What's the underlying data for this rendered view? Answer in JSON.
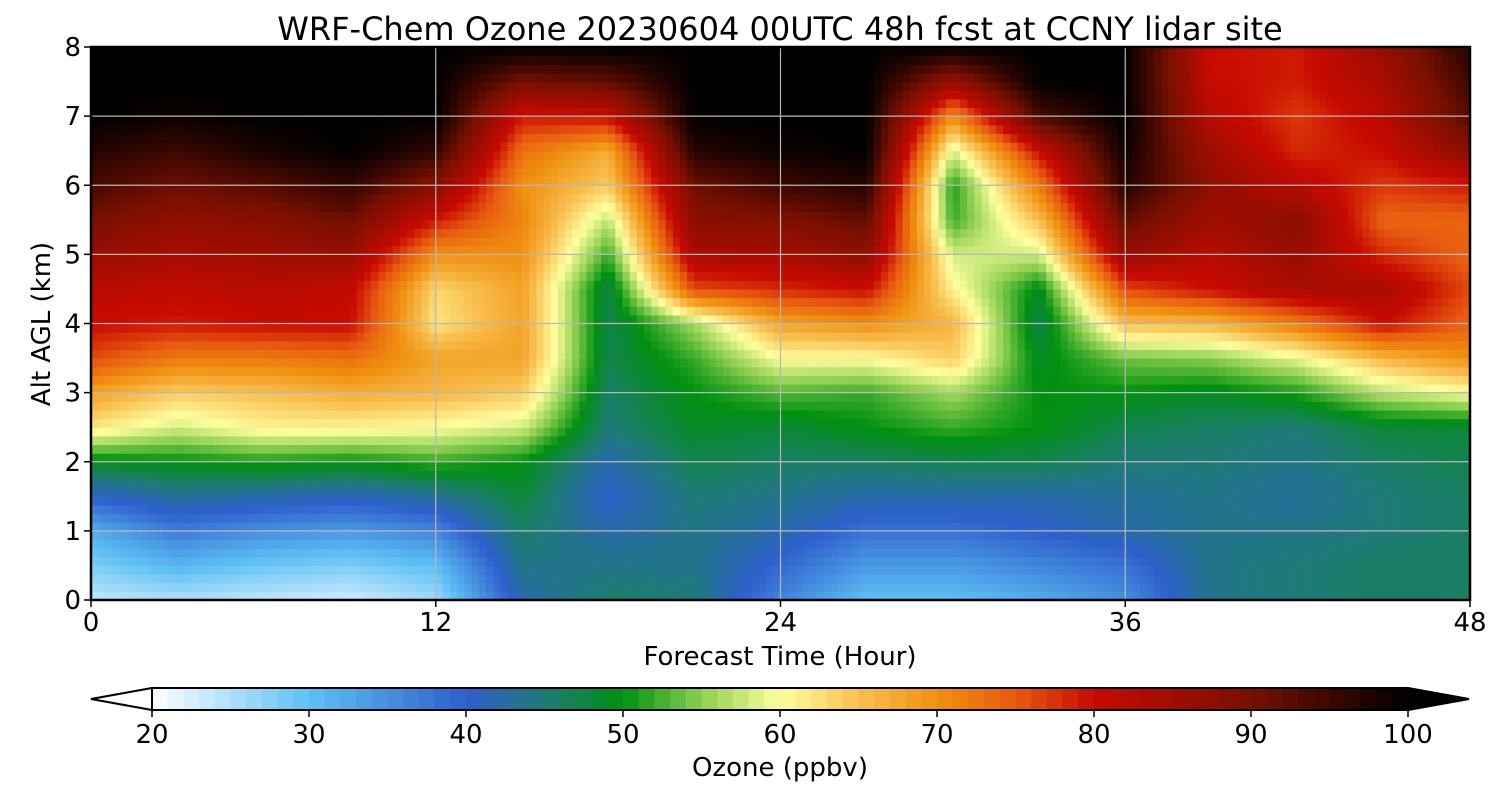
{
  "chart_data": {
    "type": "heatmap",
    "title": "WRF-Chem Ozone  20230604 00UTC 48h fcst at CCNY lidar site",
    "xlabel": "Forecast Time (Hour)",
    "ylabel": "Alt AGL (km)",
    "xlim": [
      0,
      48
    ],
    "ylim": [
      0,
      8
    ],
    "xticks": [
      "0",
      "12",
      "24",
      "36",
      "48"
    ],
    "yticks": [
      "0",
      "1",
      "2",
      "3",
      "4",
      "5",
      "6",
      "7",
      "8"
    ],
    "grid": true,
    "colorbar": {
      "label": "Ozone  (ppbv)",
      "range": [
        20,
        100
      ],
      "ticks": [
        "20",
        "30",
        "40",
        "50",
        "60",
        "70",
        "80",
        "90",
        "100"
      ],
      "extend": "both",
      "stops": [
        {
          "v": 20,
          "c": "#ffffff"
        },
        {
          "v": 30,
          "c": "#5ec0f5"
        },
        {
          "v": 40,
          "c": "#2e5fcc"
        },
        {
          "v": 45,
          "c": "#1f7a78"
        },
        {
          "v": 50,
          "c": "#009010"
        },
        {
          "v": 55,
          "c": "#8ccf50"
        },
        {
          "v": 60,
          "c": "#ffffa0"
        },
        {
          "v": 65,
          "c": "#f8c050"
        },
        {
          "v": 70,
          "c": "#f09010"
        },
        {
          "v": 75,
          "c": "#e85a10"
        },
        {
          "v": 80,
          "c": "#c80a00"
        },
        {
          "v": 90,
          "c": "#781000"
        },
        {
          "v": 100,
          "c": "#000000"
        }
      ]
    },
    "hours": [
      0,
      3,
      6,
      9,
      12,
      15,
      18,
      21,
      24,
      27,
      30,
      33,
      36,
      39,
      42,
      45,
      48
    ],
    "altitudes_km": [
      0,
      0.5,
      1,
      1.5,
      2,
      2.5,
      3,
      3.5,
      4,
      4.5,
      5,
      5.5,
      6,
      6.5,
      7,
      7.5,
      8
    ],
    "ozone_ppbv": [
      [
        24,
        25,
        24,
        23,
        26,
        42,
        46,
        45,
        36,
        30,
        30,
        32,
        35,
        44,
        45,
        46,
        46
      ],
      [
        28,
        31,
        29,
        28,
        30,
        44,
        44,
        44,
        39,
        34,
        34,
        36,
        38,
        44,
        45,
        46,
        46
      ],
      [
        32,
        37,
        35,
        34,
        36,
        46,
        42,
        44,
        42,
        38,
        38,
        40,
        42,
        44,
        44,
        45,
        46
      ],
      [
        40,
        43,
        42,
        41,
        43,
        48,
        40,
        45,
        44,
        42,
        42,
        42,
        43,
        44,
        43,
        45,
        46
      ],
      [
        49,
        50,
        51,
        50,
        52,
        50,
        42,
        47,
        46,
        46,
        47,
        47,
        45,
        45,
        44,
        46,
        47
      ],
      [
        62,
        58,
        61,
        61,
        60,
        58,
        45,
        49,
        48,
        50,
        52,
        50,
        47,
        46,
        45,
        48,
        48
      ],
      [
        68,
        64,
        65,
        67,
        66,
        64,
        46,
        50,
        53,
        52,
        56,
        50,
        50,
        49,
        51,
        57,
        60
      ],
      [
        76,
        72,
        72,
        73,
        68,
        68,
        47,
        52,
        60,
        60,
        64,
        49,
        54,
        55,
        59,
        66,
        70
      ],
      [
        80,
        79,
        80,
        80,
        62,
        68,
        47,
        56,
        68,
        70,
        66,
        47,
        65,
        66,
        72,
        80,
        74
      ],
      [
        82,
        81,
        82,
        81,
        63,
        68,
        47,
        76,
        78,
        80,
        61,
        49,
        76,
        80,
        84,
        84,
        76
      ],
      [
        86,
        84,
        85,
        86,
        70,
        70,
        52,
        84,
        84,
        87,
        58,
        58,
        86,
        82,
        86,
        78,
        74
      ],
      [
        90,
        87,
        88,
        91,
        79,
        71,
        57,
        88,
        89,
        92,
        52,
        65,
        92,
        85,
        88,
        74,
        74
      ],
      [
        94,
        91,
        93,
        96,
        88,
        70,
        64,
        91,
        95,
        97,
        51,
        72,
        97,
        87,
        82,
        77,
        79
      ],
      [
        97,
        95,
        98,
        100,
        96,
        73,
        67,
        97,
        99,
        100,
        58,
        80,
        99,
        85,
        78,
        80,
        88
      ],
      [
        100,
        99,
        100,
        100,
        100,
        79,
        80,
        100,
        100,
        100,
        70,
        94,
        100,
        82,
        77,
        82,
        93
      ],
      [
        100,
        100,
        100,
        100,
        100,
        90,
        92,
        100,
        100,
        100,
        86,
        100,
        100,
        80,
        79,
        84,
        95
      ],
      [
        100,
        100,
        100,
        100,
        100,
        100,
        100,
        100,
        100,
        100,
        100,
        100,
        100,
        80,
        79,
        86,
        97
      ]
    ]
  }
}
